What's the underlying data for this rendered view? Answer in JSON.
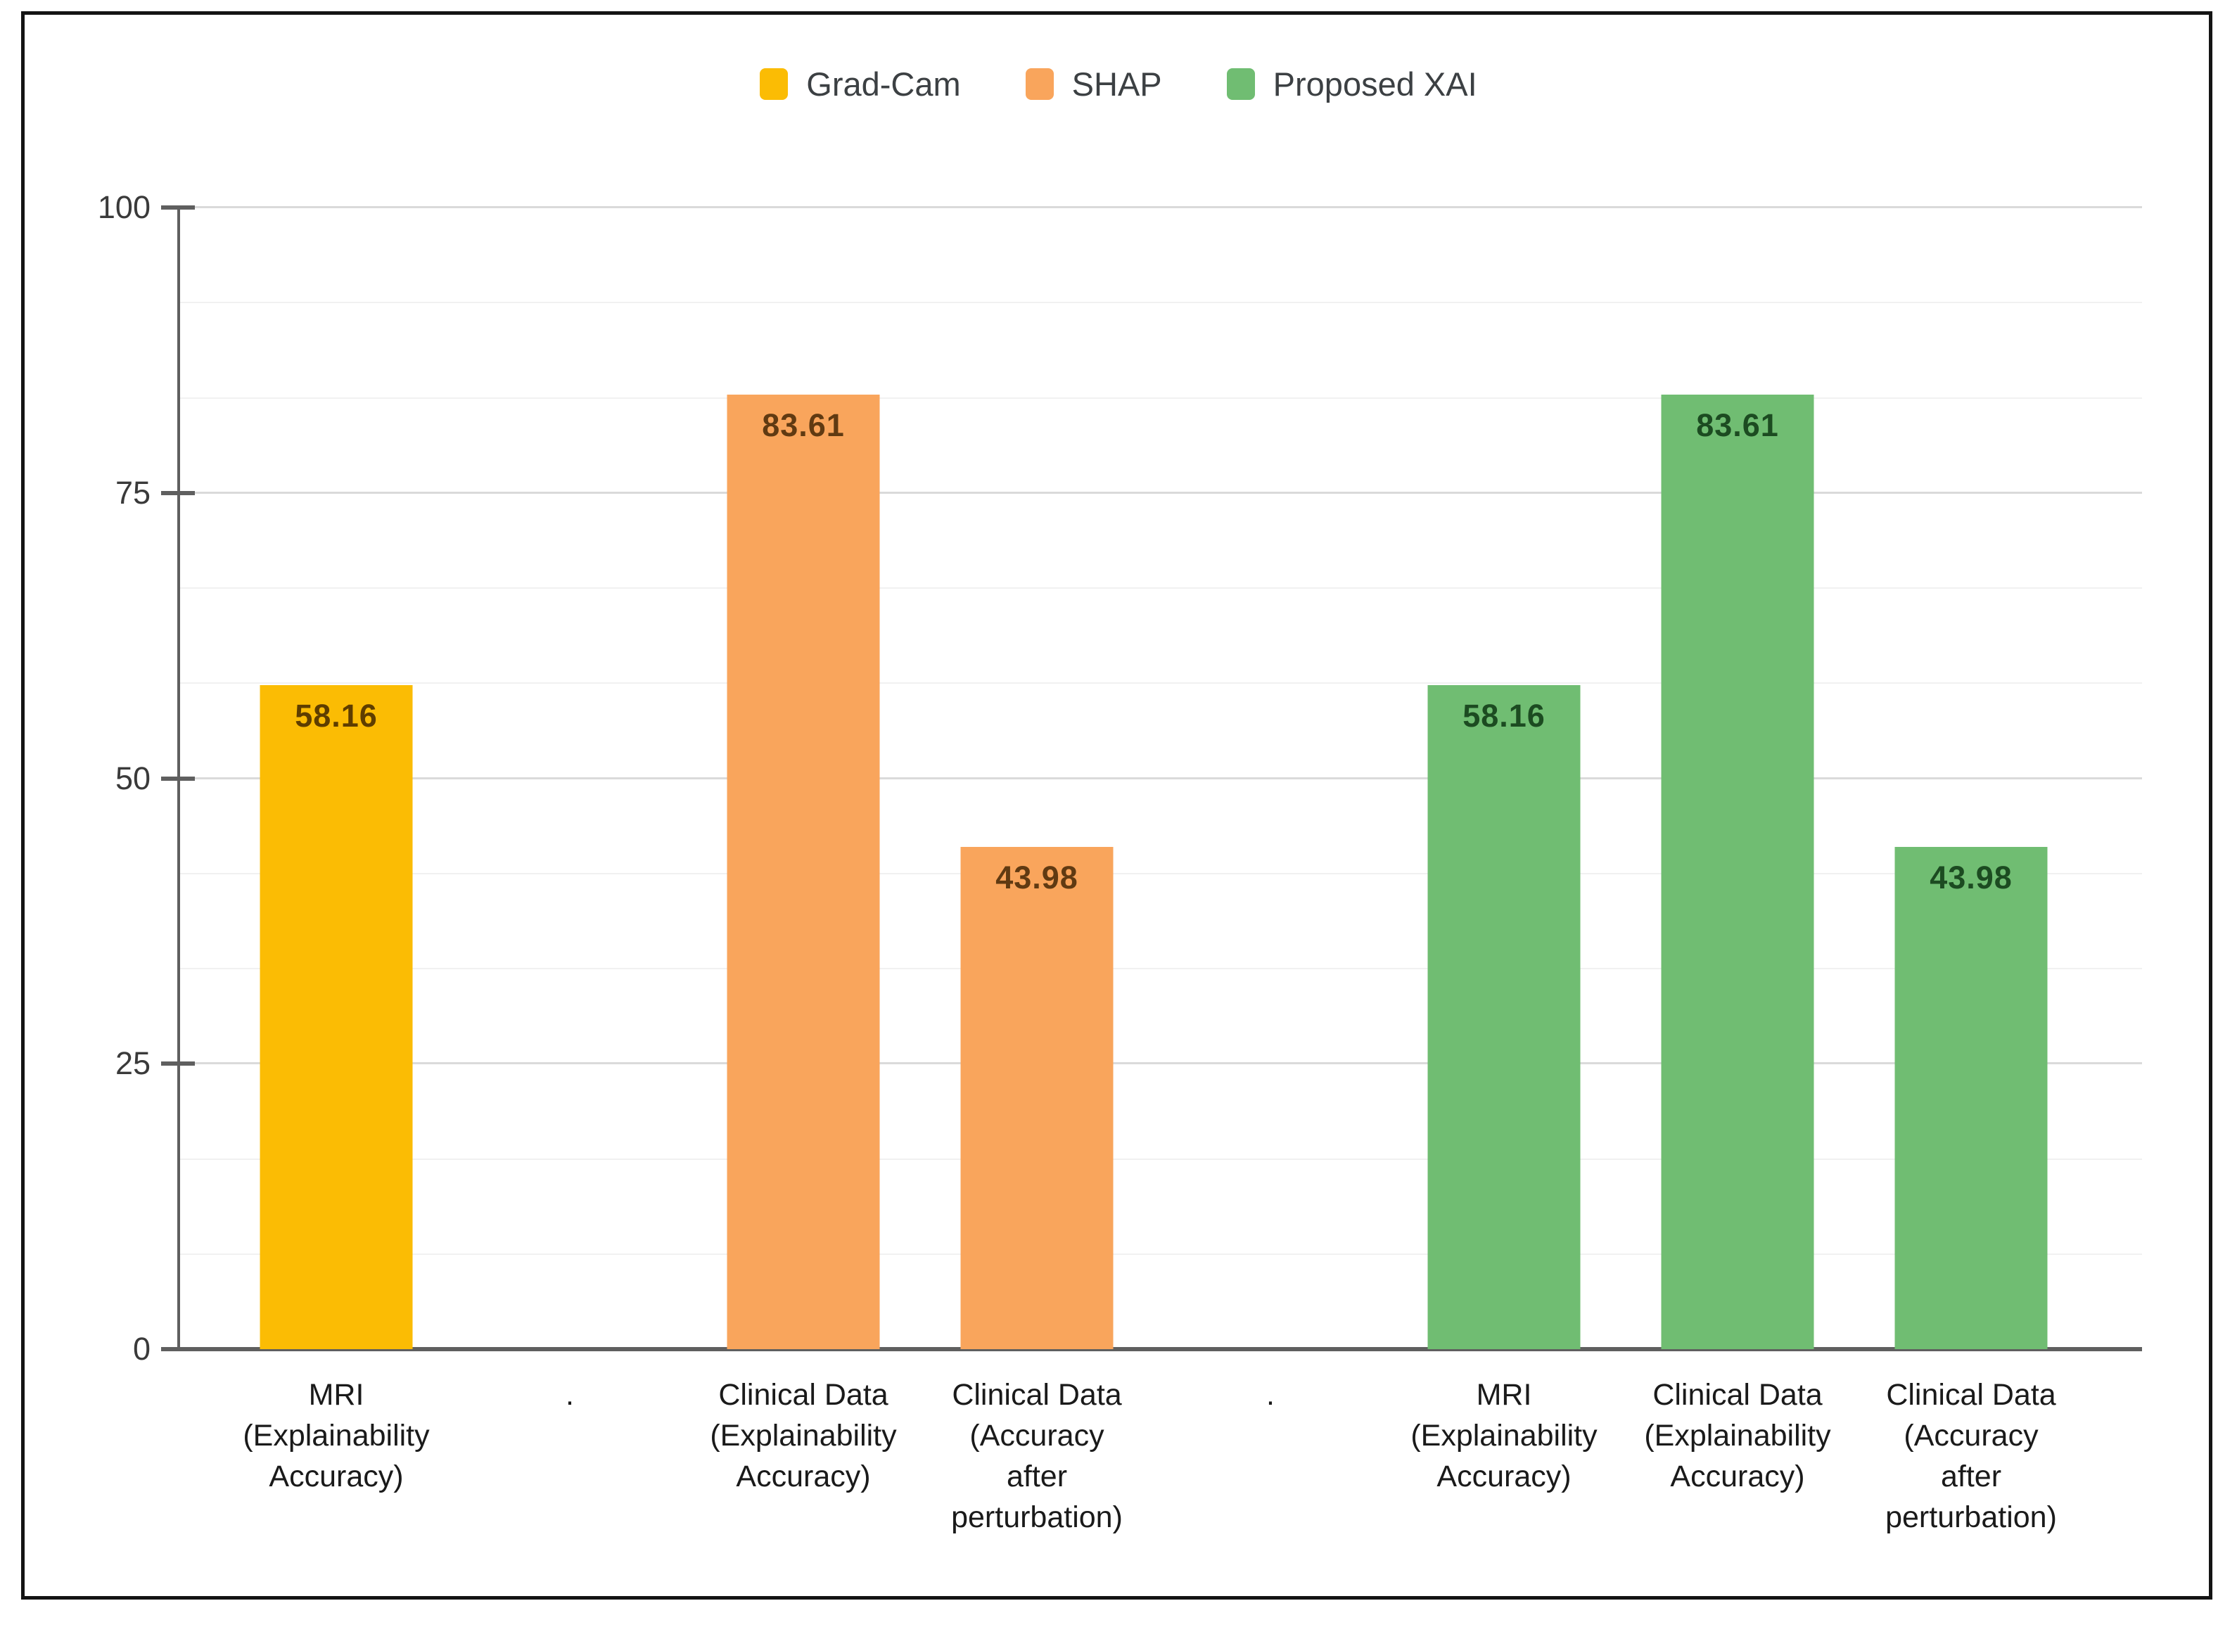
{
  "figure": {
    "background_color": "#ffffff",
    "border_color": "#141414"
  },
  "chart_data": {
    "type": "bar",
    "title": "",
    "xlabel": "",
    "ylabel": "",
    "ylim": [
      0,
      100
    ],
    "y_ticks": [
      "0",
      "25",
      "50",
      "75",
      "100"
    ],
    "grid": {
      "major": "on",
      "minor": "on",
      "minor_step": 8.3333,
      "major_color": "#dadada",
      "minor_color": "#f1f1f1",
      "axis_color": "#5f5f5f"
    },
    "legend": {
      "position": "top-center",
      "items": [
        {
          "label": "Grad-Cam",
          "color": "#FBBC04"
        },
        {
          "label": "SHAP",
          "color": "#F9A55C"
        },
        {
          "label": "Proposed XAI",
          "color": "#70BD72"
        }
      ]
    },
    "series": [
      {
        "name": "Grad-Cam",
        "color": "#FBBC04",
        "points": [
          {
            "category": "MRI (Explainability Accuracy)",
            "value": 58.16
          }
        ]
      },
      {
        "name": "SHAP",
        "color": "#F9A55C",
        "points": [
          {
            "category": "Clinical Data (Explainability Accuracy)",
            "value": 83.61
          },
          {
            "category": "Clinical Data (Accuracy after perturbation)",
            "value": 43.98
          }
        ]
      },
      {
        "name": "Proposed XAI",
        "color": "#70BD72",
        "points": [
          {
            "category": "MRI (Explainability Accuracy)",
            "value": 58.16
          },
          {
            "category": "Clinical Data (Explainability Accuracy)",
            "value": 83.61
          },
          {
            "category": "Clinical Data (Accuracy after perturbation)",
            "value": 43.98
          }
        ]
      }
    ],
    "slots": [
      {
        "category": "MRI\n(Explainability\nAccuracy)",
        "series": "Grad-Cam",
        "value": 58.16,
        "value_label": "58.16",
        "bar_color": "#FBBC04",
        "label_color": "#5E3D00"
      },
      {
        "category": ".",
        "series": null,
        "value": null
      },
      {
        "category": "Clinical Data\n(Explainability\nAccuracy)",
        "series": "SHAP",
        "value": 83.61,
        "value_label": "83.61",
        "bar_color": "#F9A55C",
        "label_color": "#603A12"
      },
      {
        "category": "Clinical Data\n(Accuracy\nafter\nperturbation)",
        "series": "SHAP",
        "value": 43.98,
        "value_label": "43.98",
        "bar_color": "#F9A55C",
        "label_color": "#603A12"
      },
      {
        "category": ".",
        "series": null,
        "value": null
      },
      {
        "category": "MRI\n(Explainability\nAccuracy)",
        "series": "Proposed XAI",
        "value": 58.16,
        "value_label": "58.16",
        "bar_color": "#70BD72",
        "label_color": "#1C4B21"
      },
      {
        "category": "Clinical Data\n(Explainability\nAccuracy)",
        "series": "Proposed XAI",
        "value": 83.61,
        "value_label": "83.61",
        "bar_color": "#70BD72",
        "label_color": "#1C4B21"
      },
      {
        "category": "Clinical Data\n(Accuracy\nafter\nperturbation)",
        "series": "Proposed XAI",
        "value": 43.98,
        "value_label": "43.98",
        "bar_color": "#70BD72",
        "label_color": "#1C4B21"
      }
    ]
  }
}
